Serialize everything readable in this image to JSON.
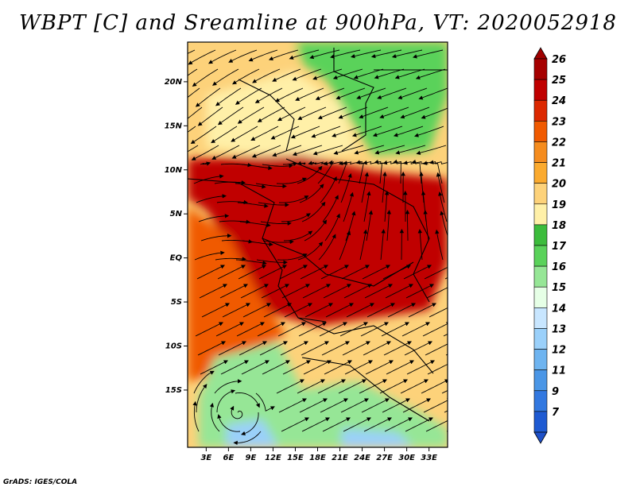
{
  "title": "WBPT [C] and Sreamline at 900hPa, VT: 2020052918",
  "credit": "GrADS: IGES/COLA",
  "map": {
    "lat_range": [
      -21.5,
      24.5
    ],
    "lon_range": [
      0.5,
      35.5
    ],
    "lat_ticks": [
      {
        "value": 20,
        "label": "20N"
      },
      {
        "value": 15,
        "label": "15N"
      },
      {
        "value": 10,
        "label": "10N"
      },
      {
        "value": 5,
        "label": "5N"
      },
      {
        "value": 0,
        "label": "EQ"
      },
      {
        "value": -5,
        "label": "5S"
      },
      {
        "value": -10,
        "label": "10S"
      },
      {
        "value": -15,
        "label": "15S"
      }
    ],
    "lon_ticks": [
      {
        "value": 3,
        "label": "3E"
      },
      {
        "value": 6,
        "label": "6E"
      },
      {
        "value": 9,
        "label": "9E"
      },
      {
        "value": 12,
        "label": "12E"
      },
      {
        "value": 15,
        "label": "15E"
      },
      {
        "value": 18,
        "label": "18E"
      },
      {
        "value": 21,
        "label": "21E"
      },
      {
        "value": 24,
        "label": "24E"
      },
      {
        "value": 27,
        "label": "27E"
      },
      {
        "value": 30,
        "label": "30E"
      },
      {
        "value": 33,
        "label": "33E"
      }
    ]
  },
  "colorbar": {
    "levels": [
      {
        "label": "26",
        "color": "#a60000"
      },
      {
        "label": "25",
        "color": "#c00000"
      },
      {
        "label": "24",
        "color": "#dc2800"
      },
      {
        "label": "23",
        "color": "#f05a00"
      },
      {
        "label": "22",
        "color": "#f58c1e"
      },
      {
        "label": "21",
        "color": "#fbaa2e"
      },
      {
        "label": "20",
        "color": "#fdd27a"
      },
      {
        "label": "19",
        "color": "#fff0a8"
      },
      {
        "label": "18",
        "color": "#3cbc3c"
      },
      {
        "label": "17",
        "color": "#5ad25a"
      },
      {
        "label": "16",
        "color": "#96e696"
      },
      {
        "label": "15",
        "color": "#e6ffe6"
      },
      {
        "label": "14",
        "color": "#c8e6ff"
      },
      {
        "label": "13",
        "color": "#9ad0fa"
      },
      {
        "label": "12",
        "color": "#6eb4f0"
      },
      {
        "label": "11",
        "color": "#4a96e6"
      },
      {
        "label": "9",
        "color": "#3278e0"
      },
      {
        "label": "7",
        "color": "#1e5ad2"
      }
    ],
    "top_color": "#a00000",
    "bottom_color": "#1e50c8"
  },
  "regions": [
    {
      "name": "sahel-north",
      "color": "#fdd27a"
    },
    {
      "name": "sahara-pale",
      "color": "#fff0a8"
    },
    {
      "name": "sudan-green",
      "color": "#5ad25a"
    },
    {
      "name": "central-core",
      "color": "#c00000"
    },
    {
      "name": "gulf-guinea",
      "color": "#f05a00"
    },
    {
      "name": "southern-green",
      "color": "#96e696"
    },
    {
      "name": "south-blue",
      "color": "#9ad0fa"
    }
  ]
}
